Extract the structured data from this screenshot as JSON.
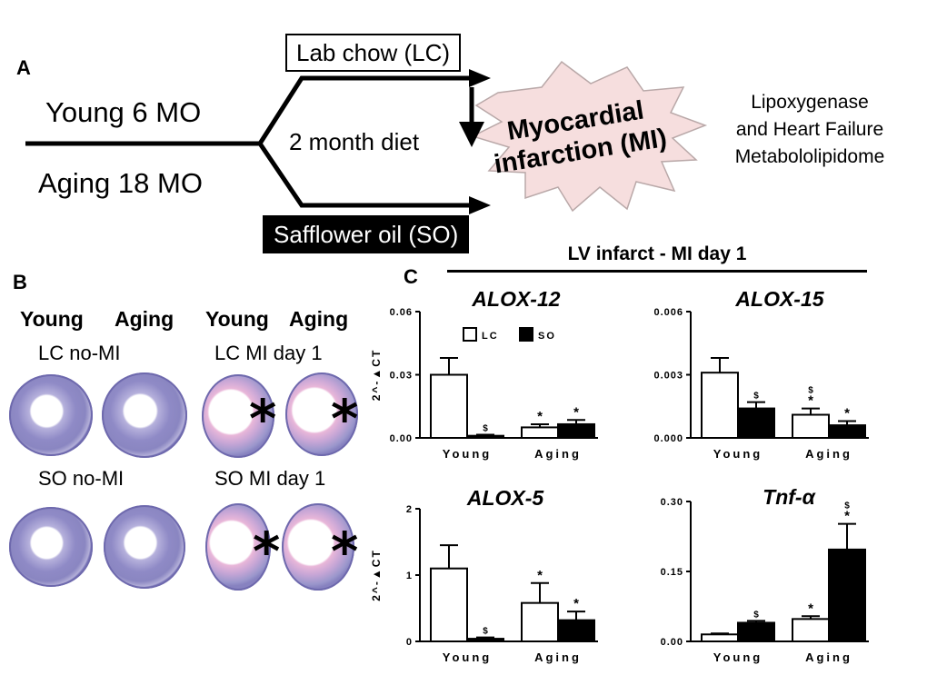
{
  "panelA": {
    "letter": "A",
    "young": "Young 6 MO",
    "aging": "Aging 18 MO",
    "diet": "2 month diet",
    "lab_chow": "Lab chow (LC)",
    "safflower": "Safflower oil (SO)",
    "mi_line1": "Myocardial",
    "mi_line2": "infarction (MI)",
    "side_line1": "Lipoxygenase",
    "side_line2": "and Heart Failure",
    "side_line3": "Metabololipidome"
  },
  "panelB": {
    "letter": "B",
    "col_headers": [
      "Young",
      "Aging",
      "Young",
      "Aging"
    ],
    "row_labels": [
      "LC no-MI",
      "LC MI day 1",
      "SO no-MI",
      "SO MI day 1"
    ],
    "asterisk": "*"
  },
  "panelC": {
    "letter": "C",
    "header": "LV infarct - MI day 1",
    "legend": [
      "LC",
      "SO"
    ],
    "ylabel": "2^-▲CT"
  },
  "chart_data": [
    {
      "type": "bar",
      "title": "ALOX-12",
      "categories": [
        "Young",
        "Aging"
      ],
      "series": [
        {
          "name": "LC",
          "values": [
            0.03,
            0.005
          ],
          "errors": [
            0.008,
            0.0015
          ],
          "marks": [
            "",
            "*"
          ]
        },
        {
          "name": "SO",
          "values": [
            0.001,
            0.0065
          ],
          "errors": [
            0.0005,
            0.002
          ],
          "marks": [
            "$",
            "*"
          ]
        }
      ],
      "ylim": [
        0,
        0.06
      ],
      "yticks": [
        "0.00",
        "0.03",
        "0.06"
      ],
      "ylabel": "2^-▲CT",
      "show_legend": true
    },
    {
      "type": "bar",
      "title": "ALOX-15",
      "categories": [
        "Young",
        "Aging"
      ],
      "series": [
        {
          "name": "LC",
          "values": [
            0.0031,
            0.0011
          ],
          "errors": [
            0.0007,
            0.0003
          ],
          "marks": [
            "",
            "$\n*"
          ]
        },
        {
          "name": "SO",
          "values": [
            0.0014,
            0.0006
          ],
          "errors": [
            0.0003,
            0.0002
          ],
          "marks": [
            "$",
            "*"
          ]
        }
      ],
      "ylim": [
        0,
        0.006
      ],
      "yticks": [
        "0.000",
        "0.003",
        "0.006"
      ],
      "ylabel": "",
      "show_legend": false
    },
    {
      "type": "bar",
      "title": "ALOX-5",
      "categories": [
        "Young",
        "Aging"
      ],
      "series": [
        {
          "name": "LC",
          "values": [
            1.1,
            0.58
          ],
          "errors": [
            0.35,
            0.3
          ],
          "marks": [
            "",
            "*"
          ]
        },
        {
          "name": "SO",
          "values": [
            0.04,
            0.32
          ],
          "errors": [
            0.02,
            0.13
          ],
          "marks": [
            "$",
            "*"
          ]
        }
      ],
      "ylim": [
        0,
        2
      ],
      "yticks": [
        "0",
        "1",
        "2"
      ],
      "ylabel": "2^-▲CT",
      "show_legend": false
    },
    {
      "type": "bar",
      "title": "Tnf-α",
      "categories": [
        "Young",
        "Aging"
      ],
      "series": [
        {
          "name": "LC",
          "values": [
            0.015,
            0.048
          ],
          "errors": [
            0.002,
            0.006
          ],
          "marks": [
            "",
            "*"
          ]
        },
        {
          "name": "SO",
          "values": [
            0.04,
            0.197
          ],
          "errors": [
            0.004,
            0.055
          ],
          "marks": [
            "$",
            "$\n*"
          ]
        }
      ],
      "ylim": [
        0,
        0.3
      ],
      "yticks": [
        "0.00",
        "0.15",
        "0.30"
      ],
      "ylabel": "",
      "show_legend": false
    }
  ]
}
